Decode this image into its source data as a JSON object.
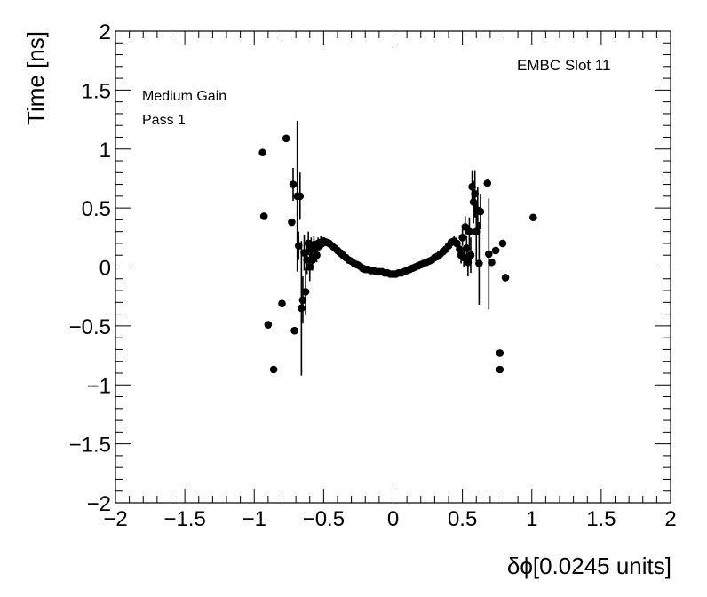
{
  "chart_data": {
    "type": "scatter",
    "title": "",
    "xlabel": "δϕ[0.0245 units]",
    "ylabel": "Time [ns]",
    "xlim": [
      -2,
      2
    ],
    "ylim": [
      -2,
      2
    ],
    "x_ticks": [
      -2,
      -1.5,
      -1,
      -0.5,
      0,
      0.5,
      1,
      1.5,
      2
    ],
    "y_ticks": [
      -2,
      -1.5,
      -1,
      -0.5,
      0,
      0.5,
      1,
      1.5,
      2
    ],
    "x_tick_labels": [
      "−2",
      "−1.5",
      "−1",
      "−0.5",
      "0",
      "0.5",
      "1",
      "1.5",
      "2"
    ],
    "y_tick_labels": [
      "−2",
      "−1.5",
      "−1",
      "−0.5",
      "0",
      "0.5",
      "1",
      "1.5",
      "2"
    ],
    "grid": false,
    "annotations": {
      "top_right": "EMBC Slot 11",
      "line1": "Medium Gain",
      "line2": "Pass 1"
    },
    "series": [
      {
        "marker": "filled-circle",
        "color": "#000000",
        "points": [
          {
            "x": -0.94,
            "y": 0.97,
            "err": 0
          },
          {
            "x": -0.93,
            "y": 0.43,
            "err": 0
          },
          {
            "x": -0.9,
            "y": -0.49,
            "err": 0
          },
          {
            "x": -0.86,
            "y": -0.87,
            "err": 0
          },
          {
            "x": -0.8,
            "y": -0.31,
            "err": 0
          },
          {
            "x": -0.77,
            "y": 1.09,
            "err": 0
          },
          {
            "x": -0.73,
            "y": 0.38,
            "err": 0
          },
          {
            "x": -0.72,
            "y": 0.7,
            "err": 0.14
          },
          {
            "x": -0.71,
            "y": -0.54,
            "err": 0
          },
          {
            "x": -0.69,
            "y": 0.6,
            "err": 0.64
          },
          {
            "x": -0.68,
            "y": 0.18,
            "err": 0.12
          },
          {
            "x": -0.67,
            "y": 0.6,
            "err": 0.2
          },
          {
            "x": -0.66,
            "y": -0.35,
            "err": 0.57
          },
          {
            "x": -0.65,
            "y": -0.28,
            "err": 0.2
          },
          {
            "x": -0.64,
            "y": 0.12,
            "err": 0.15
          },
          {
            "x": -0.63,
            "y": -0.21,
            "err": 0.2
          },
          {
            "x": -0.62,
            "y": 0.06,
            "err": 0.12
          },
          {
            "x": -0.61,
            "y": 0.2,
            "err": 0.1
          },
          {
            "x": -0.6,
            "y": 0.0,
            "err": 0.12
          },
          {
            "x": -0.59,
            "y": 0.15,
            "err": 0.1
          },
          {
            "x": -0.58,
            "y": 0.06,
            "err": 0.09
          },
          {
            "x": -0.57,
            "y": 0.19,
            "err": 0.07
          },
          {
            "x": -0.56,
            "y": 0.16,
            "err": 0.06
          },
          {
            "x": -0.55,
            "y": 0.1,
            "err": 0.06
          },
          {
            "x": -0.54,
            "y": 0.2,
            "err": 0.05
          },
          {
            "x": -0.53,
            "y": 0.18,
            "err": 0.05
          },
          {
            "x": -0.52,
            "y": 0.21,
            "err": 0.05
          },
          {
            "x": -0.51,
            "y": 0.2,
            "err": 0.04
          },
          {
            "x": -0.5,
            "y": 0.22,
            "err": 0.03
          },
          {
            "x": -0.48,
            "y": 0.21,
            "err": 0.03
          },
          {
            "x": -0.46,
            "y": 0.2,
            "err": 0.03
          },
          {
            "x": -0.44,
            "y": 0.18,
            "err": 0.02
          },
          {
            "x": -0.42,
            "y": 0.16,
            "err": 0.02
          },
          {
            "x": -0.4,
            "y": 0.14,
            "err": 0.02
          },
          {
            "x": -0.38,
            "y": 0.12,
            "err": 0.02
          },
          {
            "x": -0.36,
            "y": 0.1,
            "err": 0.02
          },
          {
            "x": -0.34,
            "y": 0.08,
            "err": 0.02
          },
          {
            "x": -0.32,
            "y": 0.06,
            "err": 0.02
          },
          {
            "x": -0.3,
            "y": 0.05,
            "err": 0.02
          },
          {
            "x": -0.28,
            "y": 0.03,
            "err": 0.02
          },
          {
            "x": -0.26,
            "y": 0.02,
            "err": 0.01
          },
          {
            "x": -0.24,
            "y": 0.01,
            "err": 0.01
          },
          {
            "x": -0.22,
            "y": -0.01,
            "err": 0.01
          },
          {
            "x": -0.2,
            "y": -0.02,
            "err": 0.01
          },
          {
            "x": -0.18,
            "y": -0.02,
            "err": 0.01
          },
          {
            "x": -0.16,
            "y": -0.03,
            "err": 0.01
          },
          {
            "x": -0.14,
            "y": -0.03,
            "err": 0.01
          },
          {
            "x": -0.12,
            "y": -0.04,
            "err": 0.01
          },
          {
            "x": -0.1,
            "y": -0.04,
            "err": 0.01
          },
          {
            "x": -0.08,
            "y": -0.04,
            "err": 0.01
          },
          {
            "x": -0.06,
            "y": -0.05,
            "err": 0.01
          },
          {
            "x": -0.04,
            "y": -0.05,
            "err": 0.01
          },
          {
            "x": -0.02,
            "y": -0.06,
            "err": 0.01
          },
          {
            "x": 0.0,
            "y": -0.06,
            "err": 0.01
          },
          {
            "x": 0.02,
            "y": -0.06,
            "err": 0.01
          },
          {
            "x": 0.04,
            "y": -0.05,
            "err": 0.01
          },
          {
            "x": 0.06,
            "y": -0.05,
            "err": 0.01
          },
          {
            "x": 0.08,
            "y": -0.04,
            "err": 0.01
          },
          {
            "x": 0.1,
            "y": -0.03,
            "err": 0.01
          },
          {
            "x": 0.12,
            "y": -0.02,
            "err": 0.01
          },
          {
            "x": 0.14,
            "y": -0.01,
            "err": 0.01
          },
          {
            "x": 0.16,
            "y": 0.0,
            "err": 0.01
          },
          {
            "x": 0.18,
            "y": 0.01,
            "err": 0.01
          },
          {
            "x": 0.2,
            "y": 0.02,
            "err": 0.01
          },
          {
            "x": 0.22,
            "y": 0.03,
            "err": 0.01
          },
          {
            "x": 0.24,
            "y": 0.04,
            "err": 0.01
          },
          {
            "x": 0.26,
            "y": 0.05,
            "err": 0.02
          },
          {
            "x": 0.28,
            "y": 0.06,
            "err": 0.02
          },
          {
            "x": 0.3,
            "y": 0.08,
            "err": 0.02
          },
          {
            "x": 0.32,
            "y": 0.09,
            "err": 0.02
          },
          {
            "x": 0.34,
            "y": 0.11,
            "err": 0.02
          },
          {
            "x": 0.36,
            "y": 0.13,
            "err": 0.02
          },
          {
            "x": 0.38,
            "y": 0.15,
            "err": 0.02
          },
          {
            "x": 0.4,
            "y": 0.18,
            "err": 0.03
          },
          {
            "x": 0.42,
            "y": 0.21,
            "err": 0.03
          },
          {
            "x": 0.44,
            "y": 0.22,
            "err": 0.04
          },
          {
            "x": 0.46,
            "y": 0.2,
            "err": 0.05
          },
          {
            "x": 0.48,
            "y": 0.15,
            "err": 0.06
          },
          {
            "x": 0.49,
            "y": 0.1,
            "err": 0.07
          },
          {
            "x": 0.5,
            "y": 0.25,
            "err": 0.07
          },
          {
            "x": 0.51,
            "y": 0.08,
            "err": 0.08
          },
          {
            "x": 0.52,
            "y": 0.34,
            "err": 0.09
          },
          {
            "x": 0.53,
            "y": 0.16,
            "err": 0.1
          },
          {
            "x": 0.54,
            "y": 0.04,
            "err": 0.12
          },
          {
            "x": 0.55,
            "y": 0.3,
            "err": 0.12
          },
          {
            "x": 0.56,
            "y": 0.1,
            "err": 0.15
          },
          {
            "x": 0.57,
            "y": 0.68,
            "err": 0.14
          },
          {
            "x": 0.58,
            "y": 0.55,
            "err": 0.18
          },
          {
            "x": 0.59,
            "y": 0.62,
            "err": 0.2
          },
          {
            "x": 0.6,
            "y": 0.3,
            "err": 0.25
          },
          {
            "x": 0.61,
            "y": 0.48,
            "err": 0.2
          },
          {
            "x": 0.62,
            "y": 0.03,
            "err": 0.35
          },
          {
            "x": 0.63,
            "y": 0.47,
            "err": 0.15
          },
          {
            "x": 0.68,
            "y": 0.71,
            "err": 0
          },
          {
            "x": 0.69,
            "y": 0.11,
            "err": 0.47
          },
          {
            "x": 0.71,
            "y": 0.04,
            "err": 0
          },
          {
            "x": 0.74,
            "y": 0.14,
            "err": 0
          },
          {
            "x": 0.77,
            "y": -0.73,
            "err": 0
          },
          {
            "x": 0.77,
            "y": -0.87,
            "err": 0
          },
          {
            "x": 0.79,
            "y": 0.2,
            "err": 0
          },
          {
            "x": 0.81,
            "y": -0.09,
            "err": 0
          },
          {
            "x": 1.01,
            "y": 0.42,
            "err": 0
          }
        ]
      }
    ]
  }
}
